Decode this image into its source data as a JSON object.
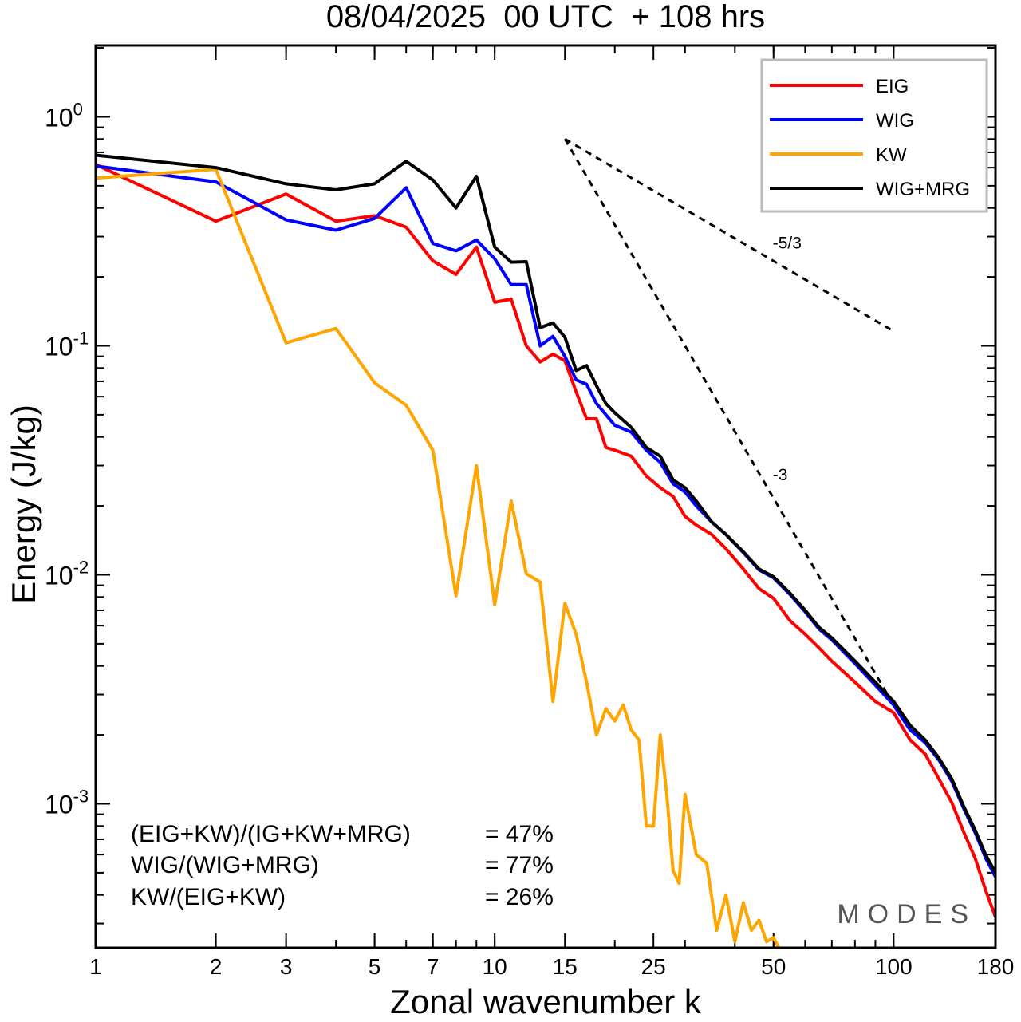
{
  "chart_data": {
    "type": "line",
    "title": "08/04/2025  00 UTC  + 108 hrs",
    "xlabel": "Zonal wavenumber k",
    "ylabel": "Energy (J/kg)",
    "xscale": "log",
    "yscale": "log",
    "xlim": [
      1,
      180
    ],
    "ylim": [
      0.000235,
      2.05
    ],
    "xticks": [
      {
        "value": 1,
        "label": "1"
      },
      {
        "value": 2,
        "label": "2"
      },
      {
        "value": 3,
        "label": "3"
      },
      {
        "value": 5,
        "label": "5"
      },
      {
        "value": 7,
        "label": "7"
      },
      {
        "value": 10,
        "label": "10"
      },
      {
        "value": 15,
        "label": "15"
      },
      {
        "value": 25,
        "label": "25"
      },
      {
        "value": 50,
        "label": "50"
      },
      {
        "value": 100,
        "label": "100"
      },
      {
        "value": 180,
        "label": "180"
      }
    ],
    "yticks": [
      {
        "value": 1,
        "base": "10",
        "exp": "0"
      },
      {
        "value": 0.1,
        "base": "10",
        "exp": "-1"
      },
      {
        "value": 0.01,
        "base": "10",
        "exp": "-2"
      },
      {
        "value": 0.001,
        "base": "10",
        "exp": "-3"
      }
    ],
    "legend_position": "top-right",
    "grid": false,
    "series": [
      {
        "name": "EIG",
        "color": "#ff0000",
        "x": [
          1,
          2,
          3,
          4,
          5,
          6,
          7,
          8,
          9,
          10,
          11,
          12,
          13,
          14,
          15,
          16,
          17,
          18,
          19,
          20,
          22,
          24,
          26,
          28,
          30,
          32,
          35,
          38,
          42,
          46,
          50,
          55,
          60,
          65,
          70,
          80,
          90,
          100,
          110,
          120,
          130,
          140,
          150,
          160,
          170,
          180
        ],
        "y": [
          0.62,
          0.35,
          0.46,
          0.35,
          0.37,
          0.33,
          0.235,
          0.205,
          0.27,
          0.155,
          0.16,
          0.1,
          0.085,
          0.092,
          0.086,
          0.063,
          0.048,
          0.048,
          0.036,
          0.035,
          0.033,
          0.027,
          0.024,
          0.022,
          0.018,
          0.0165,
          0.015,
          0.013,
          0.0106,
          0.0087,
          0.0079,
          0.0063,
          0.0055,
          0.0048,
          0.0042,
          0.0034,
          0.0028,
          0.0025,
          0.0019,
          0.00165,
          0.00128,
          0.00101,
          0.00075,
          0.00058,
          0.00042,
          0.00032
        ]
      },
      {
        "name": "WIG",
        "color": "#0000ff",
        "x": [
          1,
          2,
          3,
          4,
          5,
          6,
          7,
          8,
          9,
          10,
          11,
          12,
          13,
          14,
          15,
          16,
          17,
          18,
          19,
          20,
          22,
          24,
          26,
          28,
          30,
          32,
          35,
          38,
          42,
          46,
          50,
          55,
          60,
          65,
          70,
          80,
          90,
          100,
          110,
          120,
          130,
          140,
          150,
          160,
          170,
          180
        ],
        "y": [
          0.61,
          0.52,
          0.355,
          0.32,
          0.36,
          0.49,
          0.28,
          0.26,
          0.29,
          0.24,
          0.185,
          0.185,
          0.1,
          0.11,
          0.09,
          0.071,
          0.068,
          0.056,
          0.05,
          0.045,
          0.042,
          0.035,
          0.031,
          0.025,
          0.023,
          0.02,
          0.017,
          0.015,
          0.0125,
          0.0105,
          0.0097,
          0.0082,
          0.0069,
          0.0058,
          0.0052,
          0.0041,
          0.0033,
          0.0027,
          0.0021,
          0.00185,
          0.00155,
          0.00125,
          0.00095,
          0.00075,
          0.00058,
          0.00048
        ]
      },
      {
        "name": "KW",
        "color": "#ffa500",
        "x": [
          1,
          2,
          3,
          4,
          5,
          6,
          7,
          8,
          9,
          10,
          11,
          12,
          13,
          14,
          15,
          16,
          17,
          18,
          19,
          20,
          21,
          22,
          23,
          24,
          25,
          26,
          27,
          28,
          29,
          30,
          32,
          34,
          36,
          38,
          40,
          42,
          44,
          46,
          48,
          50,
          55
        ],
        "y": [
          0.54,
          0.59,
          0.103,
          0.119,
          0.069,
          0.055,
          0.035,
          0.0081,
          0.03,
          0.0074,
          0.021,
          0.0101,
          0.0093,
          0.0028,
          0.0075,
          0.0055,
          0.0034,
          0.002,
          0.0026,
          0.0023,
          0.0027,
          0.0021,
          0.0019,
          0.0008,
          0.0008,
          0.002,
          0.0011,
          0.00051,
          0.00045,
          0.0011,
          0.0006,
          0.00055,
          0.00028,
          0.0004,
          0.00025,
          0.00037,
          0.00028,
          0.00031,
          0.00025,
          0.00026,
          0.00019
        ]
      },
      {
        "name": "WIG+MRG",
        "color": "#000000",
        "x": [
          1,
          2,
          3,
          4,
          5,
          6,
          7,
          8,
          9,
          10,
          11,
          12,
          13,
          14,
          15,
          16,
          17,
          18,
          19,
          20,
          22,
          24,
          26,
          28,
          30,
          32,
          35,
          38,
          42,
          46,
          50,
          55,
          60,
          65,
          70,
          80,
          90,
          100,
          110,
          120,
          130,
          140,
          150,
          160,
          170,
          180
        ],
        "y": [
          0.68,
          0.6,
          0.51,
          0.48,
          0.51,
          0.64,
          0.53,
          0.4,
          0.55,
          0.27,
          0.232,
          0.233,
          0.12,
          0.126,
          0.109,
          0.078,
          0.082,
          0.067,
          0.056,
          0.051,
          0.044,
          0.036,
          0.033,
          0.026,
          0.024,
          0.021,
          0.017,
          0.015,
          0.0126,
          0.0106,
          0.0098,
          0.0083,
          0.007,
          0.0059,
          0.0053,
          0.0042,
          0.0034,
          0.0028,
          0.0022,
          0.0019,
          0.00158,
          0.00128,
          0.00097,
          0.00077,
          0.0006,
          0.0005
        ]
      }
    ],
    "reference_lines": [
      {
        "label": "-5/3",
        "x": [
          15,
          100
        ],
        "y": [
          0.8,
          0.1158
        ]
      },
      {
        "label": "-3",
        "x": [
          15,
          100
        ],
        "y": [
          0.8,
          0.0027
        ]
      }
    ],
    "annotations": [
      {
        "label": "(EIG+KW)/(IG+KW+MRG)",
        "value": "= 47%"
      },
      {
        "label": "WIG/(WIG+MRG)",
        "value": "= 77%"
      },
      {
        "label": "KW/(EIG+KW)",
        "value": "= 26%"
      }
    ],
    "watermark": "MODES"
  }
}
